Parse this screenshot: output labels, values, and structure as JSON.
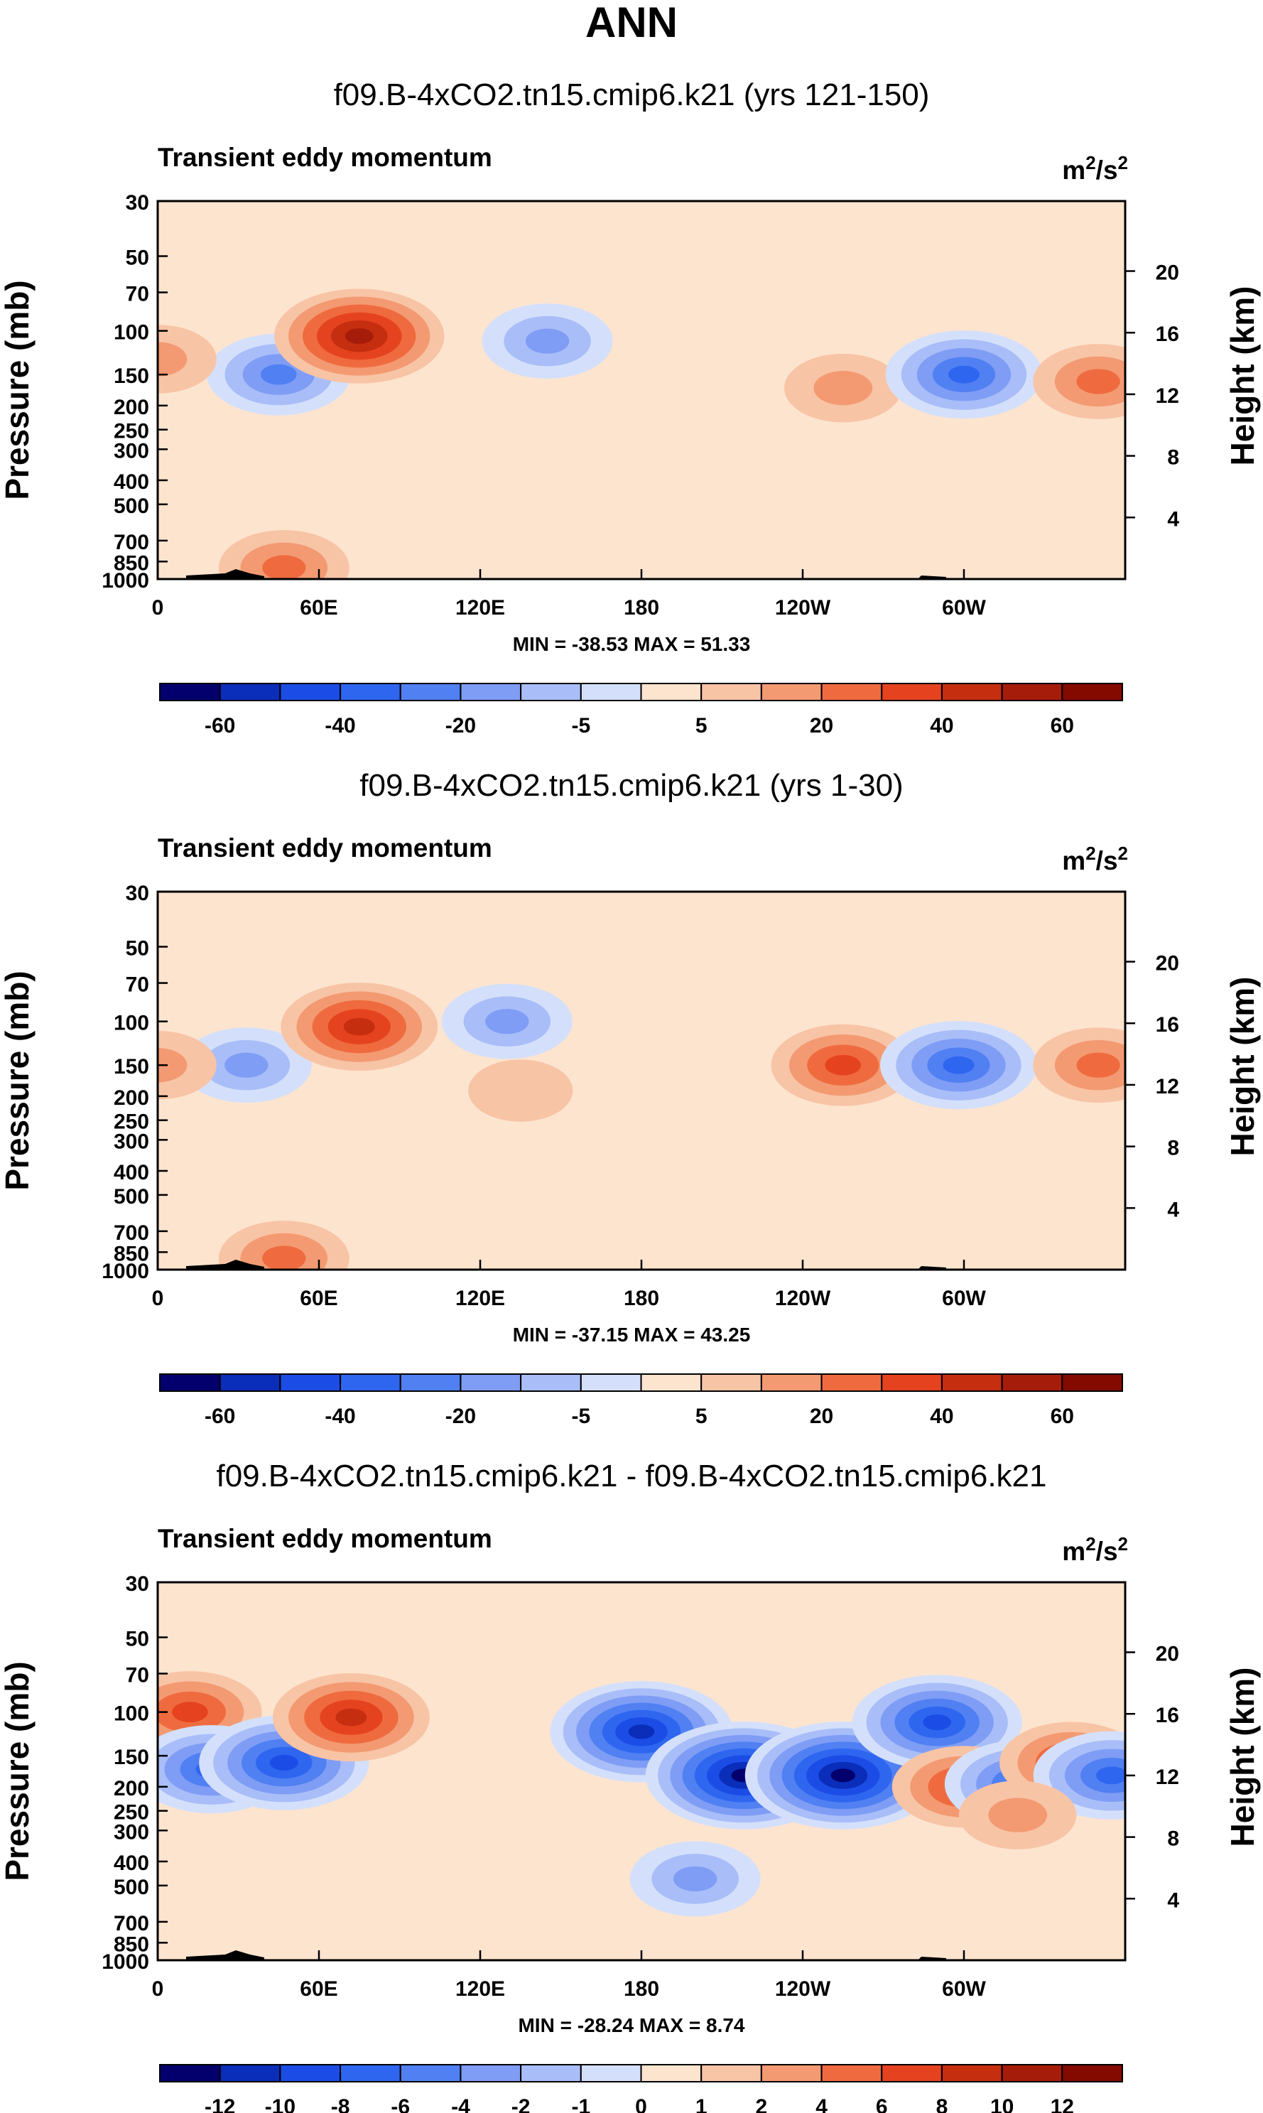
{
  "supertitle": "ANN",
  "chart_data": [
    {
      "type": "heatmap",
      "title": "f09.B-4xCO2.tn15.cmip6.k21 (yrs 121-150)",
      "left_string": "Transient eddy momentum",
      "units_base": "m",
      "units_sup1": "2",
      "units_mid": "/s",
      "units_sup2": "2",
      "ylabel": "Pressure (mb)",
      "ylabel_right": "Height (km)",
      "y_ticks": [
        "30",
        "50",
        "70",
        "100",
        "150",
        "200",
        "250",
        "300",
        "400",
        "500",
        "700",
        "850",
        "1000"
      ],
      "y_values": [
        30,
        50,
        70,
        100,
        150,
        200,
        250,
        300,
        400,
        500,
        700,
        850,
        1000
      ],
      "right_ticks": [
        "20",
        "16",
        "12",
        "8",
        "4"
      ],
      "right_values": [
        20,
        16,
        12,
        8,
        4
      ],
      "x_ticks": [
        "0",
        "60E",
        "120E",
        "180",
        "120W",
        "60W"
      ],
      "x_values": [
        0,
        60,
        120,
        180,
        240,
        300
      ],
      "xlim": [
        0,
        360
      ],
      "ylim": [
        30,
        1000
      ],
      "min_max": "MIN = -38.53  MAX =  51.33",
      "min": -38.53,
      "max": 51.33,
      "colorbar_labels": [
        "-60",
        "-40",
        "-20",
        "-5",
        "5",
        "20",
        "40",
        "60"
      ],
      "colorbar_levels": [
        -70,
        -60,
        -50,
        -40,
        -30,
        -20,
        -10,
        -5,
        0,
        5,
        10,
        20,
        30,
        40,
        50,
        60,
        70
      ],
      "features": [
        {
          "lon": 45,
          "p": 150,
          "value": -22
        },
        {
          "lon": 75,
          "p": 105,
          "value": 51
        },
        {
          "lon": 145,
          "p": 110,
          "value": -17
        },
        {
          "lon": 255,
          "p": 170,
          "value": 15
        },
        {
          "lon": 300,
          "p": 150,
          "value": -38
        },
        {
          "lon": 350,
          "p": 160,
          "value": 25
        },
        {
          "lon": 0,
          "p": 130,
          "value": 15
        },
        {
          "lon": 47,
          "p": 900,
          "value": 25
        }
      ]
    },
    {
      "type": "heatmap",
      "title": "f09.B-4xCO2.tn15.cmip6.k21 (yrs 1-30)",
      "left_string": "Transient eddy momentum",
      "units_base": "m",
      "units_sup1": "2",
      "units_mid": "/s",
      "units_sup2": "2",
      "ylabel": "Pressure (mb)",
      "ylabel_right": "Height (km)",
      "y_ticks": [
        "30",
        "50",
        "70",
        "100",
        "150",
        "200",
        "250",
        "300",
        "400",
        "500",
        "700",
        "850",
        "1000"
      ],
      "y_values": [
        30,
        50,
        70,
        100,
        150,
        200,
        250,
        300,
        400,
        500,
        700,
        850,
        1000
      ],
      "right_ticks": [
        "20",
        "16",
        "12",
        "8",
        "4"
      ],
      "right_values": [
        20,
        16,
        12,
        8,
        4
      ],
      "x_ticks": [
        "0",
        "60E",
        "120E",
        "180",
        "120W",
        "60W"
      ],
      "x_values": [
        0,
        60,
        120,
        180,
        240,
        300
      ],
      "xlim": [
        0,
        360
      ],
      "ylim": [
        30,
        1000
      ],
      "min_max": "MIN = -37.15  MAX =  43.25",
      "min": -37.15,
      "max": 43.25,
      "colorbar_labels": [
        "-60",
        "-40",
        "-20",
        "-5",
        "5",
        "20",
        "40",
        "60"
      ],
      "colorbar_levels": [
        -70,
        -60,
        -50,
        -40,
        -30,
        -20,
        -10,
        -5,
        0,
        5,
        10,
        20,
        30,
        40,
        50,
        60,
        70
      ],
      "features": [
        {
          "lon": 33,
          "p": 150,
          "value": -16
        },
        {
          "lon": 75,
          "p": 105,
          "value": 43
        },
        {
          "lon": 130,
          "p": 100,
          "value": -12
        },
        {
          "lon": 255,
          "p": 150,
          "value": 38
        },
        {
          "lon": 298,
          "p": 150,
          "value": -37
        },
        {
          "lon": 350,
          "p": 150,
          "value": 22
        },
        {
          "lon": 0,
          "p": 150,
          "value": 12
        },
        {
          "lon": 135,
          "p": 190,
          "value": 7
        },
        {
          "lon": 47,
          "p": 900,
          "value": 25
        }
      ]
    },
    {
      "type": "heatmap",
      "title": "f09.B-4xCO2.tn15.cmip6.k21 - f09.B-4xCO2.tn15.cmip6.k21",
      "left_string": "Transient eddy momentum",
      "units_base": "m",
      "units_sup1": "2",
      "units_mid": "/s",
      "units_sup2": "2",
      "ylabel": "Pressure (mb)",
      "ylabel_right": "Height (km)",
      "y_ticks": [
        "30",
        "50",
        "70",
        "100",
        "150",
        "200",
        "250",
        "300",
        "400",
        "500",
        "700",
        "850",
        "1000"
      ],
      "y_values": [
        30,
        50,
        70,
        100,
        150,
        200,
        250,
        300,
        400,
        500,
        700,
        850,
        1000
      ],
      "right_ticks": [
        "20",
        "16",
        "12",
        "8",
        "4"
      ],
      "right_values": [
        20,
        16,
        12,
        8,
        4
      ],
      "x_ticks": [
        "0",
        "60E",
        "120E",
        "180",
        "120W",
        "60W"
      ],
      "x_values": [
        0,
        60,
        120,
        180,
        240,
        300
      ],
      "xlim": [
        0,
        360
      ],
      "ylim": [
        30,
        1000
      ],
      "min_max": "MIN = -28.24  MAX =  8.74",
      "min": -28.24,
      "max": 8.74,
      "colorbar_labels": [
        "-12",
        "-10",
        "-8",
        "-6",
        "-4",
        "-2",
        "-1",
        "0",
        "1",
        "2",
        "4",
        "6",
        "8",
        "10",
        "12"
      ],
      "colorbar_levels": [
        -14,
        -12,
        -10,
        -8,
        -6,
        -4,
        -2,
        -1,
        0,
        1,
        2,
        4,
        6,
        8,
        10,
        12,
        14
      ],
      "features": [
        {
          "lon": 12,
          "p": 100,
          "value": 6
        },
        {
          "lon": 20,
          "p": 170,
          "value": -8
        },
        {
          "lon": 47,
          "p": 160,
          "value": -10
        },
        {
          "lon": 72,
          "p": 105,
          "value": 8.7
        },
        {
          "lon": 180,
          "p": 120,
          "value": -12
        },
        {
          "lon": 218,
          "p": 180,
          "value": -28
        },
        {
          "lon": 255,
          "p": 180,
          "value": -28
        },
        {
          "lon": 290,
          "p": 110,
          "value": -10
        },
        {
          "lon": 300,
          "p": 200,
          "value": 7
        },
        {
          "lon": 322,
          "p": 195,
          "value": -8
        },
        {
          "lon": 340,
          "p": 160,
          "value": 6
        },
        {
          "lon": 355,
          "p": 180,
          "value": -8
        },
        {
          "lon": 200,
          "p": 470,
          "value": -3
        },
        {
          "lon": 320,
          "p": 260,
          "value": 3
        }
      ]
    }
  ]
}
